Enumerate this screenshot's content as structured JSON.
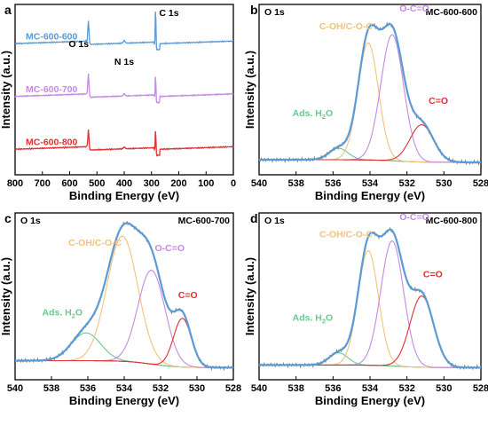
{
  "colors": {
    "envelope": "#5b9bd5",
    "raw": "#7f7f7f",
    "background": "#e03030",
    "ocoo": "#c58ae3",
    "cohcoc": "#f2c27e",
    "ads": "#6cc88d",
    "co": "#e03030"
  },
  "chart_data": [
    {
      "type": "line",
      "panel_label": "a",
      "title": "",
      "xlabel": "Binding Energy (eV)",
      "ylabel": "Intensity (a.u.)",
      "xlim": [
        800,
        0
      ],
      "x_reversed": true,
      "xticks": [
        "800",
        "700",
        "600",
        "500",
        "400",
        "300",
        "200",
        "100",
        "0"
      ],
      "xtick_values": [
        800,
        700,
        600,
        500,
        400,
        300,
        200,
        100,
        0
      ],
      "peak_annotations": [
        {
          "text": "O 1s",
          "x": 531
        },
        {
          "text": "N 1s",
          "x": 400
        },
        {
          "text": "C 1s",
          "x": 284.8
        }
      ],
      "series": [
        {
          "name": "MC-600-600",
          "color": "#5b9bd5",
          "offset": 0.74,
          "o_peak": 0.12,
          "n_peak": 0.015,
          "c_peak": 0.24
        },
        {
          "name": "MC-600-700",
          "color": "#c58ae3",
          "offset": 0.43,
          "o_peak": 0.12,
          "n_peak": 0.012,
          "c_peak": 0.15
        },
        {
          "name": "MC-600-800",
          "color": "#e03030",
          "offset": 0.12,
          "o_peak": 0.1,
          "n_peak": 0.01,
          "c_peak": 0.14
        }
      ]
    },
    {
      "type": "line",
      "panel_label": "b",
      "element": "O 1s",
      "sample": "MC-600-600",
      "xlabel": "Binding Energy (eV)",
      "ylabel": "Intensity (a.u.)",
      "xlim": [
        540,
        528
      ],
      "x_reversed": true,
      "xticks": [
        "540",
        "538",
        "536",
        "534",
        "532",
        "530",
        "528"
      ],
      "xtick_values": [
        540,
        538,
        536,
        534,
        532,
        530,
        528
      ],
      "components": [
        {
          "name": "Ads. H₂O",
          "color": "#6cc88d",
          "center": 535.7,
          "height": 0.065,
          "fwhm": 1.2
        },
        {
          "name": "C-OH/C-O-C",
          "color": "#f2c27e",
          "center": 534.1,
          "height": 0.66,
          "fwhm": 1.3
        },
        {
          "name": "O-C=O",
          "color": "#c58ae3",
          "center": 532.8,
          "height": 0.71,
          "fwhm": 1.45
        },
        {
          "name": "C=O",
          "color": "#e03030",
          "center": 531.2,
          "height": 0.21,
          "fwhm": 1.5
        }
      ],
      "background": {
        "high": 0.045,
        "low": 0.03
      },
      "labels": [
        {
          "text": "C-OH/C-O-C",
          "color": "#f2c27e",
          "x": 535.3,
          "y": 0.78
        },
        {
          "text": "O-C=O",
          "color": "#c58ae3",
          "x": 531.6,
          "y": 0.88
        },
        {
          "text": "C=O",
          "color": "#e03030",
          "x": 530.3,
          "y": 0.36
        },
        {
          "text": "Ads. H₂O",
          "color": "#6cc88d",
          "x": 537.1,
          "y": 0.29
        }
      ]
    },
    {
      "type": "line",
      "panel_label": "c",
      "element": "O 1s",
      "sample": "MC-600-700",
      "xlabel": "Binding Energy (eV)",
      "ylabel": "Intensity (a.u.)",
      "xlim": [
        540,
        528
      ],
      "x_reversed": true,
      "xticks": [
        "540",
        "538",
        "536",
        "534",
        "532",
        "530",
        "528"
      ],
      "xtick_values": [
        540,
        538,
        536,
        534,
        532,
        530,
        528
      ],
      "components": [
        {
          "name": "Ads. H₂O",
          "color": "#6cc88d",
          "center": 536.1,
          "height": 0.16,
          "fwhm": 1.9
        },
        {
          "name": "C-OH/C-O-C",
          "color": "#f2c27e",
          "center": 534.1,
          "height": 0.72,
          "fwhm": 2.0
        },
        {
          "name": "O-C=O",
          "color": "#c58ae3",
          "center": 532.5,
          "height": 0.54,
          "fwhm": 1.75
        },
        {
          "name": "C=O",
          "color": "#e03030",
          "center": 530.8,
          "height": 0.28,
          "fwhm": 1.15
        }
      ],
      "background": {
        "high": 0.07,
        "low": 0.03
      },
      "labels": [
        {
          "text": "C-OH/C-O-C",
          "color": "#f2c27e",
          "x": 535.6,
          "y": 0.73
        },
        {
          "text": "O-C=O",
          "color": "#c58ae3",
          "x": 531.5,
          "y": 0.7
        },
        {
          "text": "C=O",
          "color": "#e03030",
          "x": 530.5,
          "y": 0.43
        },
        {
          "text": "Ads. H₂O",
          "color": "#6cc88d",
          "x": 537.4,
          "y": 0.33
        }
      ]
    },
    {
      "type": "line",
      "panel_label": "d",
      "element": "O 1s",
      "sample": "MC-600-800",
      "xlabel": "Binding Energy (eV)",
      "ylabel": "Intensity (a.u.)",
      "xlim": [
        540,
        528
      ],
      "x_reversed": true,
      "xticks": [
        "540",
        "538",
        "536",
        "534",
        "532",
        "530",
        "528"
      ],
      "xtick_values": [
        540,
        538,
        536,
        534,
        532,
        530,
        528
      ],
      "components": [
        {
          "name": "Ads. H₂O",
          "color": "#6cc88d",
          "center": 535.7,
          "height": 0.07,
          "fwhm": 1.2
        },
        {
          "name": "C-OH/C-O-C",
          "color": "#f2c27e",
          "center": 534.1,
          "height": 0.66,
          "fwhm": 1.3
        },
        {
          "name": "O-C=O",
          "color": "#c58ae3",
          "center": 532.8,
          "height": 0.72,
          "fwhm": 1.45
        },
        {
          "name": "C=O",
          "color": "#e03030",
          "center": 531.2,
          "height": 0.41,
          "fwhm": 1.5
        }
      ],
      "background": {
        "high": 0.045,
        "low": 0.03
      },
      "labels": [
        {
          "text": "C-OH/C-O-C",
          "color": "#f2c27e",
          "x": 535.3,
          "y": 0.78
        },
        {
          "text": "O-C=O",
          "color": "#c58ae3",
          "x": 531.6,
          "y": 0.88
        },
        {
          "text": "C=O",
          "color": "#e03030",
          "x": 530.6,
          "y": 0.55
        },
        {
          "text": "Ads. H₂O",
          "color": "#6cc88d",
          "x": 537.1,
          "y": 0.3
        }
      ]
    }
  ]
}
